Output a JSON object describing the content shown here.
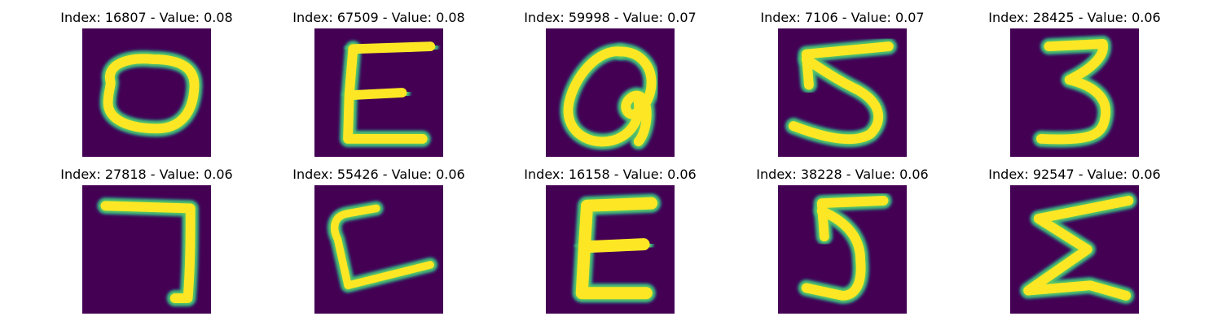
{
  "figure": {
    "panels": [
      {
        "title": "Index: 16807 - Value: 0.08",
        "glyph": "0"
      },
      {
        "title": "Index: 67509 - Value: 0.08",
        "glyph": "E"
      },
      {
        "title": "Index: 59998 - Value: 0.07",
        "glyph": "a"
      },
      {
        "title": "Index: 7106 - Value: 0.07",
        "glyph": "5"
      },
      {
        "title": "Index: 28425 - Value: 0.06",
        "glyph": "3"
      },
      {
        "title": "Index: 27818 - Value: 0.06",
        "glyph": "7"
      },
      {
        "title": "Index: 55426 - Value: 0.06",
        "glyph": "L"
      },
      {
        "title": "Index: 16158 - Value: 0.06",
        "glyph": "E"
      },
      {
        "title": "Index: 38228 - Value: 0.06",
        "glyph": "5"
      },
      {
        "title": "Index: 92547 - Value: 0.06",
        "glyph": "Σ"
      }
    ]
  },
  "colors": {
    "background": "#440154",
    "stroke_outer": "#21918c",
    "stroke_mid": "#5ec962",
    "stroke_inner": "#fde725"
  }
}
